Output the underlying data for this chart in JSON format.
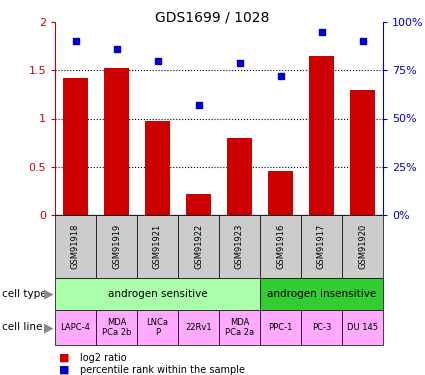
{
  "title": "GDS1699 / 1028",
  "samples": [
    "GSM91918",
    "GSM91919",
    "GSM91921",
    "GSM91922",
    "GSM91923",
    "GSM91916",
    "GSM91917",
    "GSM91920"
  ],
  "log2_ratio": [
    1.42,
    1.52,
    0.97,
    0.22,
    0.8,
    0.46,
    1.65,
    1.3
  ],
  "percentile_rank": [
    90,
    86,
    80,
    57,
    79,
    72,
    95,
    90
  ],
  "bar_color": "#cc0000",
  "dot_color": "#0000cc",
  "cell_type_groups": [
    {
      "label": "androgen sensitive",
      "start": 0,
      "end": 5,
      "color": "#aaffaa"
    },
    {
      "label": "androgen insensitive",
      "start": 5,
      "end": 8,
      "color": "#33cc33"
    }
  ],
  "cell_lines": [
    {
      "label": "LAPC-4",
      "start": 0,
      "end": 1
    },
    {
      "label": "MDA\nPCa 2b",
      "start": 1,
      "end": 2
    },
    {
      "label": "LNCa\nP",
      "start": 2,
      "end": 3
    },
    {
      "label": "22Rv1",
      "start": 3,
      "end": 4
    },
    {
      "label": "MDA\nPCa 2a",
      "start": 4,
      "end": 5
    },
    {
      "label": "PPC-1",
      "start": 5,
      "end": 6
    },
    {
      "label": "PC-3",
      "start": 6,
      "end": 7
    },
    {
      "label": "DU 145",
      "start": 7,
      "end": 8
    }
  ],
  "cell_line_color": "#ffaaff",
  "ylim_left": [
    0,
    2
  ],
  "ylim_right": [
    0,
    100
  ],
  "yticks_left": [
    0,
    0.5,
    1.0,
    1.5,
    2.0
  ],
  "yticks_right": [
    0,
    25,
    50,
    75,
    100
  ],
  "ytick_labels_left": [
    "0",
    "0.5",
    "1",
    "1.5",
    "2"
  ],
  "ytick_labels_right": [
    "0%",
    "25%",
    "50%",
    "75%",
    "100%"
  ],
  "legend_log2": "log2 ratio",
  "legend_pct": "percentile rank within the sample",
  "left_tick_color": "#cc0000",
  "right_tick_color": "#0000cc",
  "hline_values": [
    0.5,
    1.0,
    1.5
  ],
  "bar_width": 0.6,
  "sample_box_color": "#cccccc",
  "arrow_color": "#888888",
  "fig_bg": "#ffffff"
}
